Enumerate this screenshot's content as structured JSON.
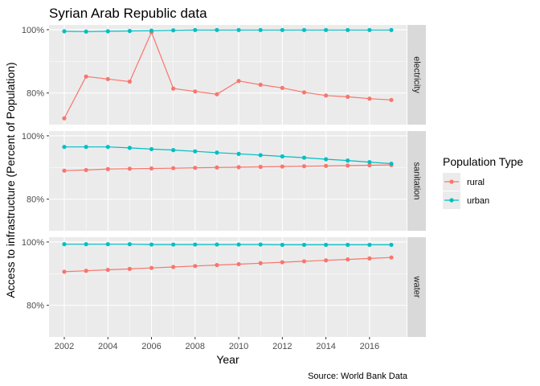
{
  "chart_data": {
    "type": "line",
    "title": "Syrian Arab Republic data",
    "xlabel": "Year",
    "ylabel": "Access to infrastructure (Percent of Population)",
    "caption": "Source: World Bank Data",
    "legend": {
      "title": "Population Type",
      "position": "right",
      "items": [
        {
          "label": "rural",
          "color": "#F8766D"
        },
        {
          "label": "urban",
          "color": "#00BFC4"
        }
      ]
    },
    "xlim": [
      2001.3,
      2017.7
    ],
    "ylim": [
      70,
      101.5
    ],
    "x_ticks": [
      2002,
      2004,
      2006,
      2008,
      2010,
      2012,
      2014,
      2016
    ],
    "x_tick_labels": [
      "2002",
      "2004",
      "2006",
      "2008",
      "2010",
      "2012",
      "2014",
      "2016"
    ],
    "y_ticks": [
      80,
      100
    ],
    "y_tick_labels": [
      "80%",
      "100%"
    ],
    "grid": true,
    "x": [
      2002,
      2003,
      2004,
      2005,
      2006,
      2007,
      2008,
      2009,
      2010,
      2011,
      2012,
      2013,
      2014,
      2015,
      2016,
      2017
    ],
    "panels": [
      {
        "strip": "electricity",
        "series": [
          {
            "name": "rural",
            "color": "#F8766D",
            "values": [
              72.0,
              85.2,
              84.4,
              83.6,
              99.2,
              81.4,
              80.5,
              79.6,
              83.8,
              82.6,
              81.6,
              80.2,
              79.2,
              78.8,
              78.2,
              77.8
            ]
          },
          {
            "name": "urban",
            "color": "#00BFC4",
            "values": [
              99.5,
              99.4,
              99.5,
              99.6,
              99.7,
              99.8,
              99.9,
              99.9,
              99.9,
              99.9,
              99.9,
              99.9,
              99.9,
              99.9,
              99.9,
              99.9
            ]
          }
        ]
      },
      {
        "strip": "sanitation",
        "series": [
          {
            "name": "rural",
            "color": "#F8766D",
            "values": [
              89.0,
              89.2,
              89.5,
              89.6,
              89.7,
              89.8,
              89.9,
              90.0,
              90.1,
              90.2,
              90.3,
              90.4,
              90.5,
              90.6,
              90.7,
              90.8
            ]
          },
          {
            "name": "urban",
            "color": "#00BFC4",
            "values": [
              96.5,
              96.5,
              96.5,
              96.2,
              95.8,
              95.5,
              95.1,
              94.7,
              94.3,
              93.9,
              93.5,
              93.1,
              92.6,
              92.2,
              91.7,
              91.2
            ]
          }
        ]
      },
      {
        "strip": "water",
        "series": [
          {
            "name": "rural",
            "color": "#F8766D",
            "values": [
              90.6,
              90.9,
              91.2,
              91.5,
              91.8,
              92.1,
              92.4,
              92.7,
              93.0,
              93.3,
              93.6,
              93.9,
              94.2,
              94.5,
              94.8,
              95.1
            ]
          },
          {
            "name": "urban",
            "color": "#00BFC4",
            "values": [
              99.3,
              99.3,
              99.3,
              99.3,
              99.2,
              99.2,
              99.2,
              99.2,
              99.2,
              99.2,
              99.1,
              99.1,
              99.1,
              99.1,
              99.1,
              99.1
            ]
          }
        ]
      }
    ]
  }
}
